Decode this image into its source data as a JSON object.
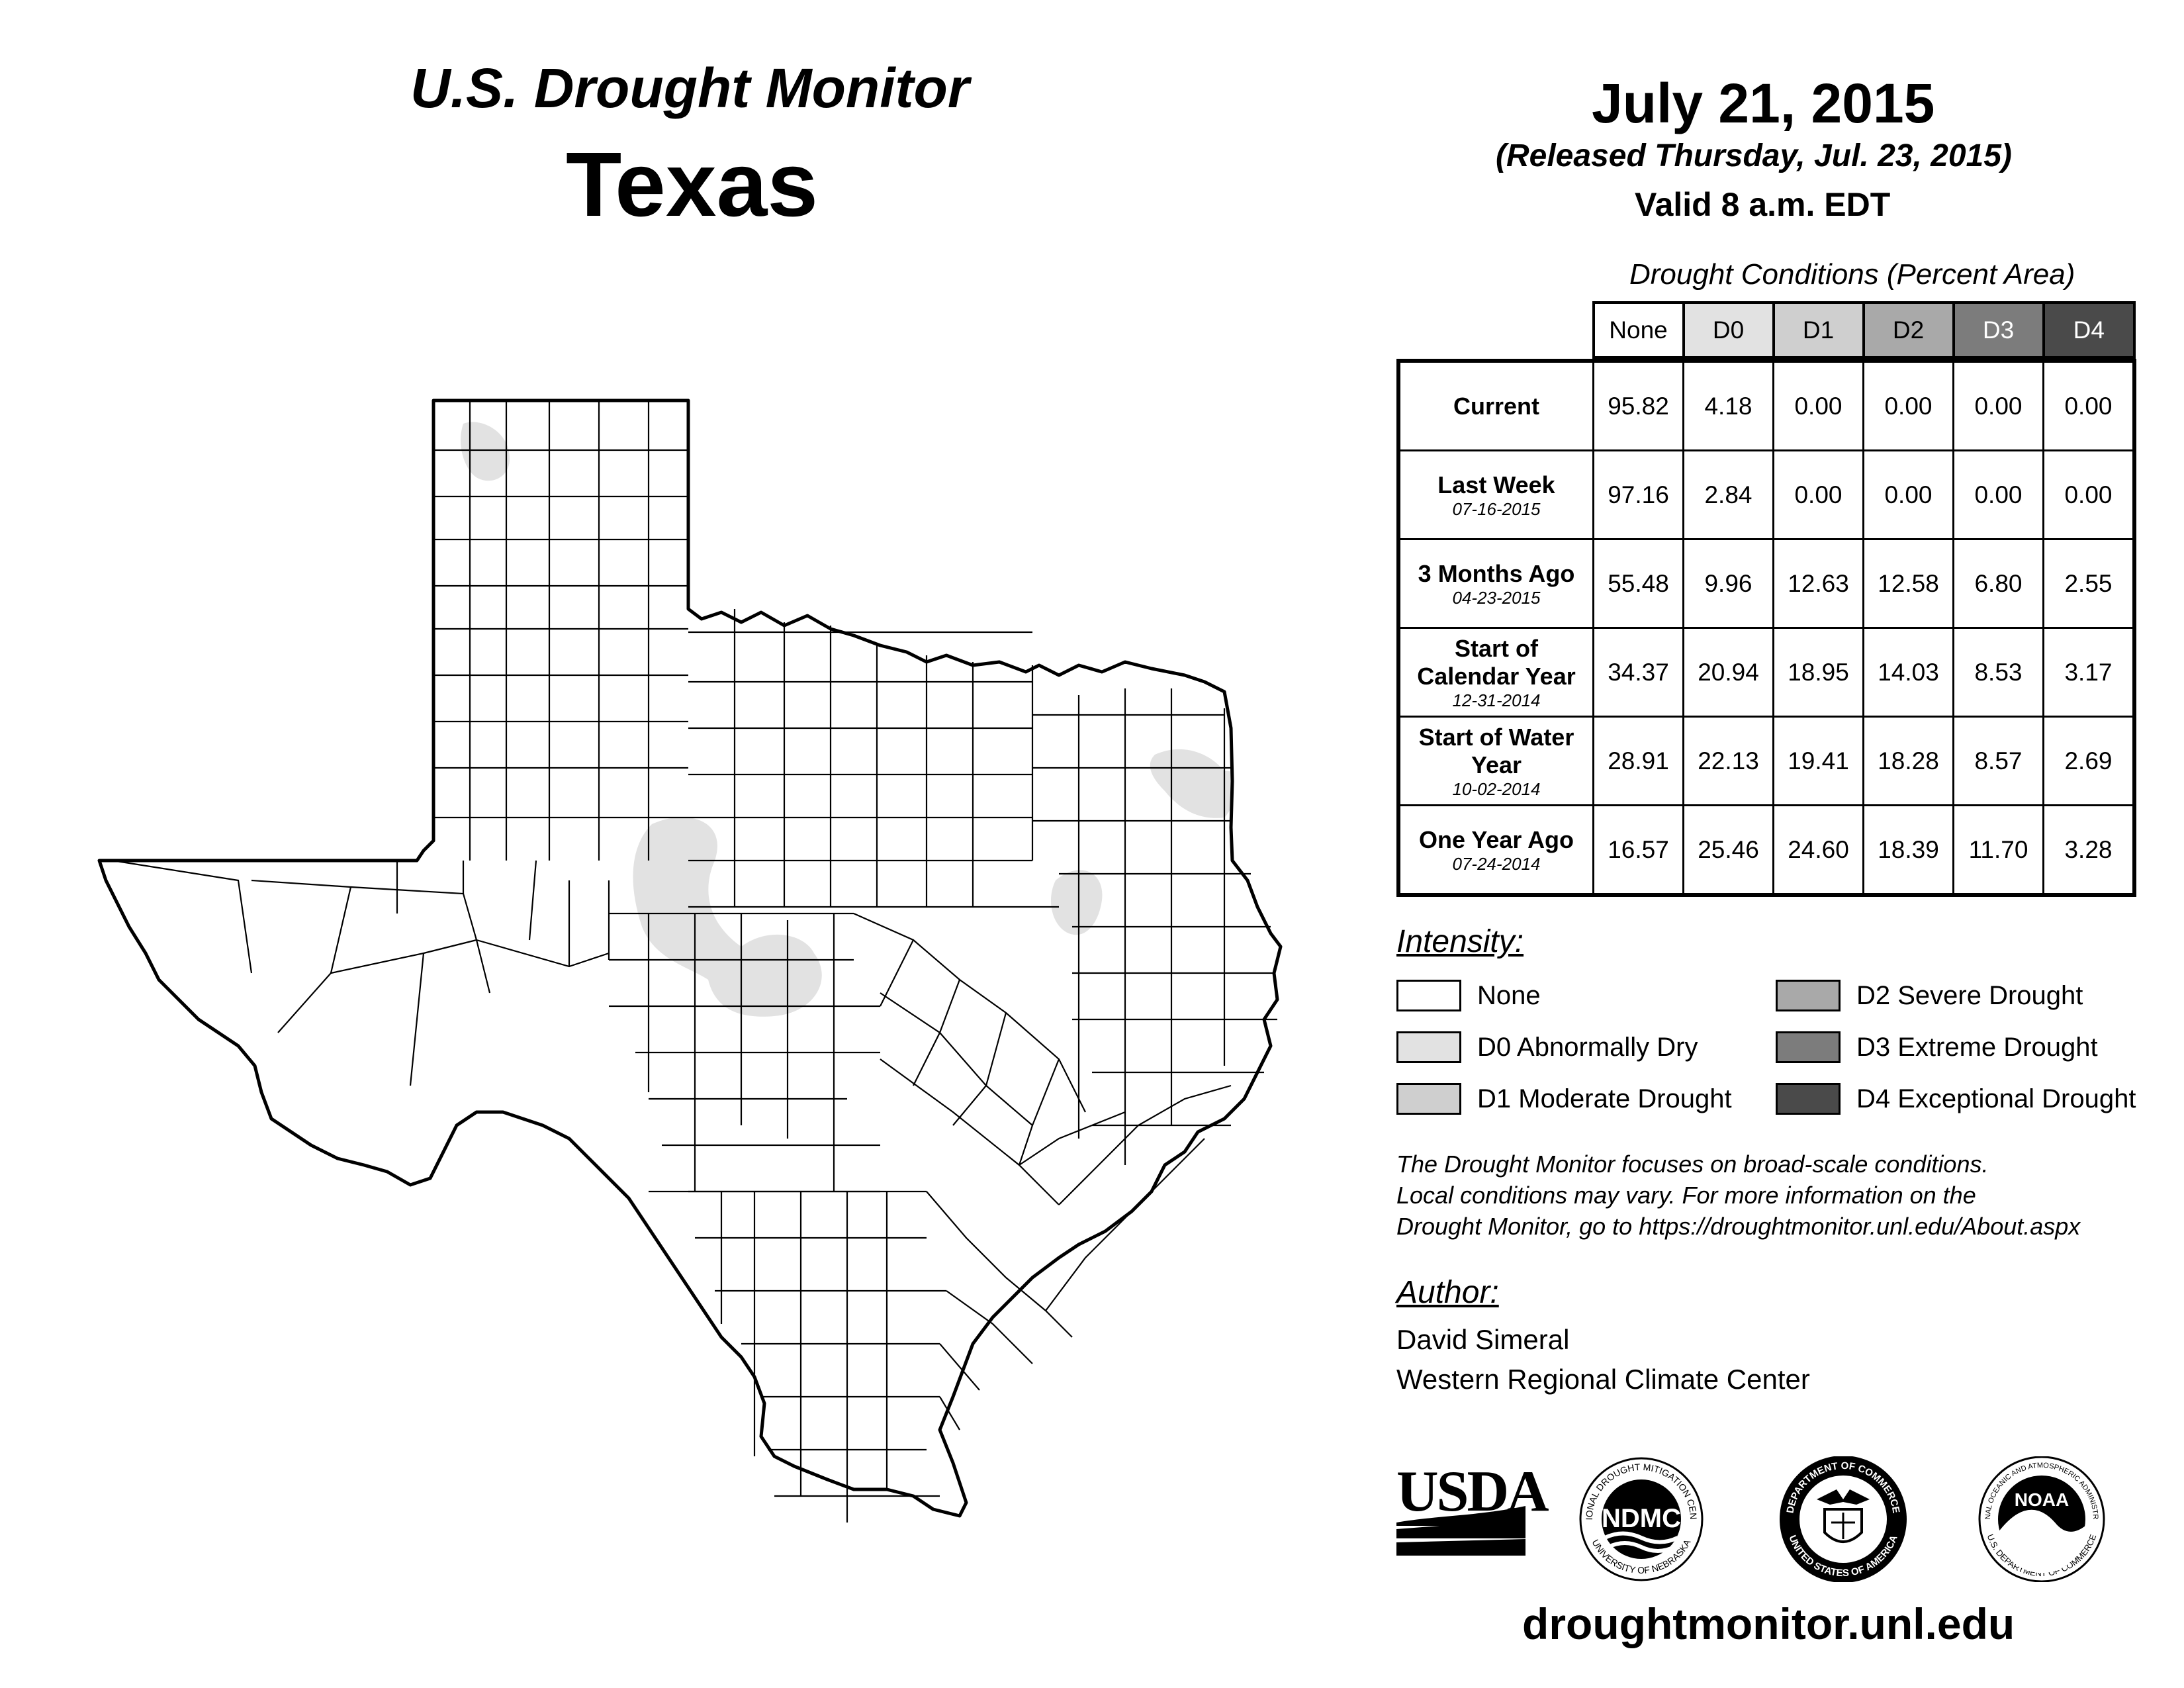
{
  "header": {
    "title": "U.S. Drought Monitor",
    "state": "Texas",
    "date": "July 21, 2015",
    "released": "(Released Thursday, Jul. 23, 2015)",
    "valid": "Valid 8 a.m. EDT"
  },
  "table": {
    "caption": "Drought Conditions (Percent Area)",
    "columns": [
      "None",
      "D0",
      "D1",
      "D2",
      "D3",
      "D4"
    ],
    "header_colors": [
      "#ffffff",
      "#e2e2e2",
      "#cfcfcf",
      "#a9a9a9",
      "#7c7c7c",
      "#4a4a4a"
    ],
    "rows": [
      {
        "label": "Current",
        "date": "",
        "values": [
          "95.82",
          "4.18",
          "0.00",
          "0.00",
          "0.00",
          "0.00"
        ]
      },
      {
        "label": "Last Week",
        "date": "07-16-2015",
        "values": [
          "97.16",
          "2.84",
          "0.00",
          "0.00",
          "0.00",
          "0.00"
        ]
      },
      {
        "label": "3 Months Ago",
        "date": "04-23-2015",
        "values": [
          "55.48",
          "9.96",
          "12.63",
          "12.58",
          "6.80",
          "2.55"
        ]
      },
      {
        "label": "Start of Calendar Year",
        "date": "12-31-2014",
        "values": [
          "34.37",
          "20.94",
          "18.95",
          "14.03",
          "8.53",
          "3.17"
        ]
      },
      {
        "label": "Start of Water Year",
        "date": "10-02-2014",
        "values": [
          "28.91",
          "22.13",
          "19.41",
          "18.28",
          "8.57",
          "2.69"
        ]
      },
      {
        "label": "One Year Ago",
        "date": "07-24-2014",
        "values": [
          "16.57",
          "25.46",
          "24.60",
          "18.39",
          "11.70",
          "3.28"
        ]
      }
    ]
  },
  "legend": {
    "heading": "Intensity:",
    "items": [
      {
        "label": "None",
        "color": "#ffffff"
      },
      {
        "label": "D0 Abnormally Dry",
        "color": "#e2e2e2"
      },
      {
        "label": "D1 Moderate Drought",
        "color": "#cfcfcf"
      },
      {
        "label": "D2 Severe Drought",
        "color": "#a9a9a9"
      },
      {
        "label": "D3 Extreme Drought",
        "color": "#7c7c7c"
      },
      {
        "label": "D4 Exceptional Drought",
        "color": "#4a4a4a"
      }
    ]
  },
  "note": {
    "line1": "The Drought Monitor focuses on broad-scale conditions.",
    "line2": "Local conditions may vary. For more information on the",
    "line3": "Drought Monitor, go to https://droughtmonitor.unl.edu/About.aspx"
  },
  "author": {
    "heading": "Author:",
    "name": "David Simeral",
    "org": "Western Regional Climate Center"
  },
  "logos": {
    "usda": "USDA",
    "ndmc": "NDMC",
    "ndmc_ring_top": "NATIONAL DROUGHT MITIGATION CENTER",
    "ndmc_ring_bottom": "UNIVERSITY OF NEBRASKA",
    "doc_ring_top": "DEPARTMENT OF COMMERCE",
    "doc_ring_bottom": "UNITED STATES OF AMERICA",
    "noaa": "NOAA",
    "noaa_ring_top": "NATIONAL OCEANIC AND ATMOSPHERIC ADMINISTRATION",
    "noaa_ring_bottom": "U.S. DEPARTMENT OF COMMERCE"
  },
  "footer": {
    "url": "droughtmonitor.unl.edu"
  },
  "map": {
    "drought_color": "#e2e2e2",
    "outline_color": "#000000"
  }
}
